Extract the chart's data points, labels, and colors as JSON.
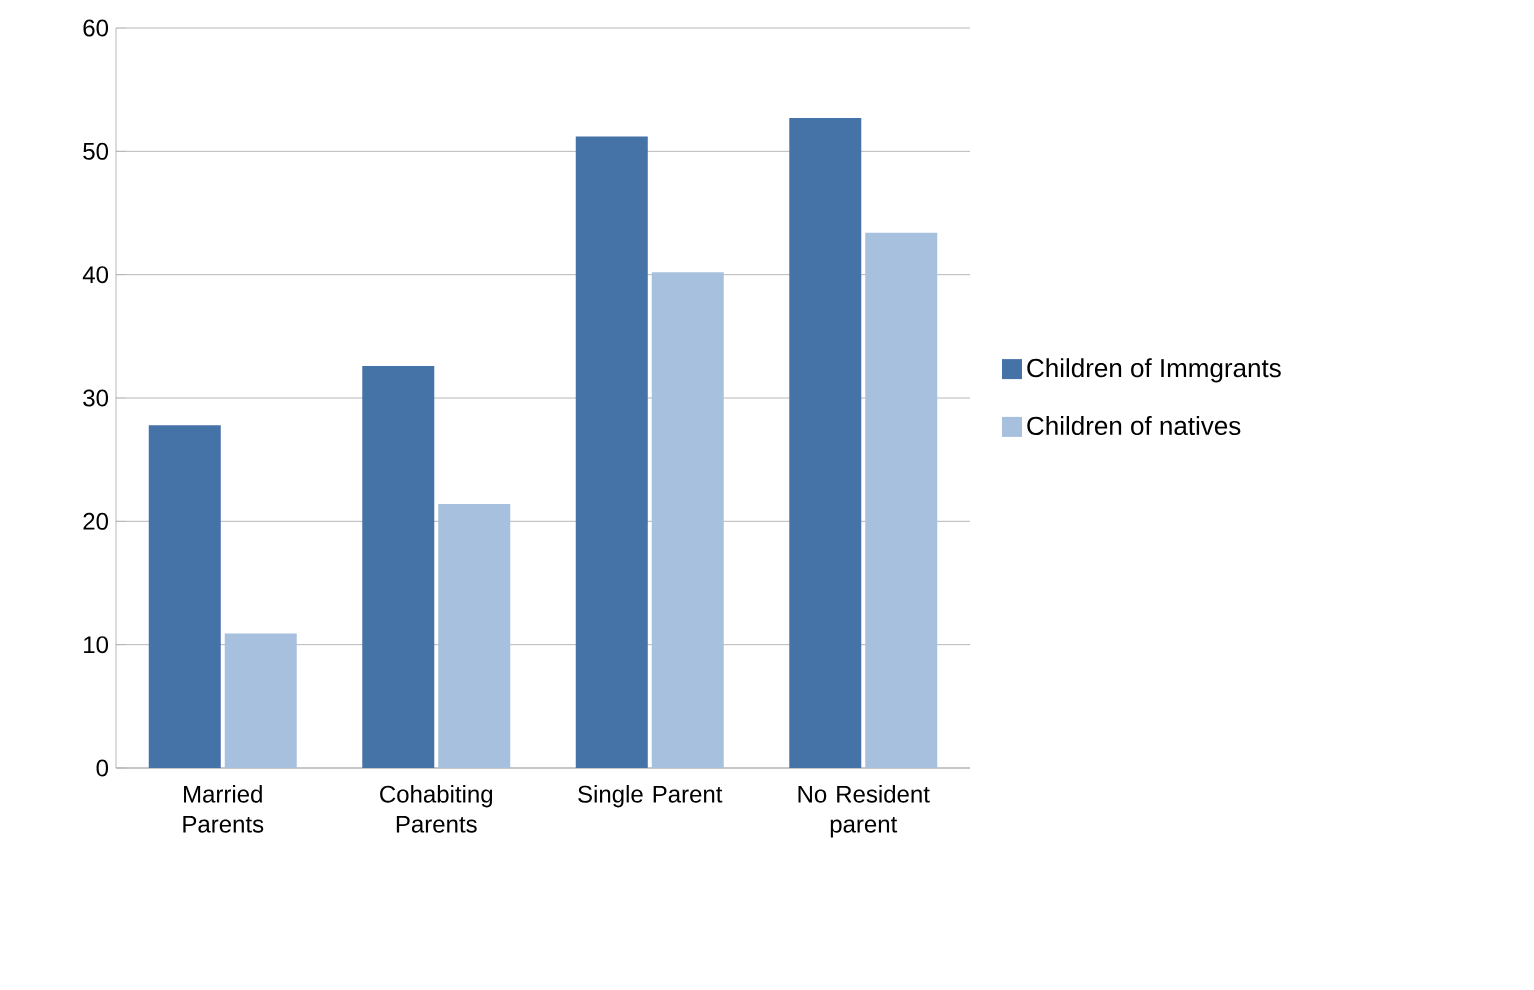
{
  "chart_data": {
    "type": "bar",
    "categories": [
      "Married Parents",
      "Cohabiting Parents",
      "Single Parent",
      "No Resident parent"
    ],
    "series": [
      {
        "name": "Children of Immgrants",
        "color": "#4572a7",
        "values": [
          27.8,
          32.6,
          51.2,
          52.7
        ]
      },
      {
        "name": "Children of natives",
        "color": "#a7c0de",
        "values": [
          10.9,
          21.4,
          40.2,
          43.4
        ]
      }
    ],
    "ylim": [
      0,
      60
    ],
    "yticks": [
      0,
      10,
      20,
      30,
      40,
      50,
      60
    ],
    "grid": "y",
    "legend": "right"
  }
}
